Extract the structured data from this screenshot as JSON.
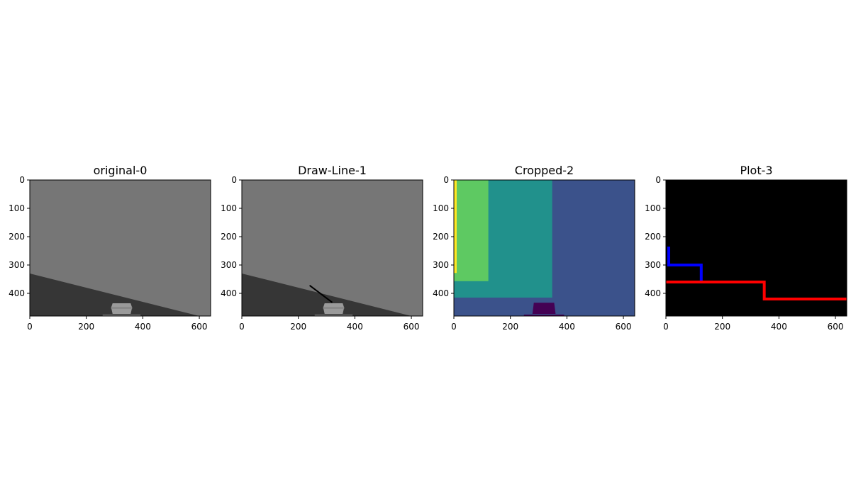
{
  "chart_data": [
    {
      "type": "image",
      "title": "original-0",
      "xlim": [
        0,
        640
      ],
      "ylim": [
        480,
        0
      ],
      "xticks": [
        0,
        200,
        400,
        600
      ],
      "yticks": [
        0,
        100,
        200,
        300,
        400
      ],
      "colors": {
        "background": "#767676",
        "road": "#363636",
        "vehicle": "#9a9a9a"
      },
      "road_edge": [
        [
          0,
          330
        ],
        [
          600,
          480
        ]
      ],
      "vehicle": [
        [
          288,
          435
        ],
        [
          362,
          480
        ]
      ]
    },
    {
      "type": "image",
      "title": "Draw-Line-1",
      "xlim": [
        0,
        640
      ],
      "ylim": [
        480,
        0
      ],
      "xticks": [
        0,
        200,
        400,
        600
      ],
      "yticks": [
        0,
        100,
        200,
        300,
        400
      ],
      "colors": {
        "background": "#767676",
        "road": "#363636",
        "vehicle": "#9a9a9a",
        "line": "#000000"
      },
      "road_edge": [
        [
          0,
          330
        ],
        [
          600,
          480
        ]
      ],
      "vehicle": [
        [
          288,
          435
        ],
        [
          362,
          480
        ]
      ],
      "drawn_line": [
        [
          240,
          372
        ],
        [
          320,
          432
        ]
      ]
    },
    {
      "type": "heatmap",
      "title": "Cropped-2",
      "xlim": [
        0,
        640
      ],
      "ylim": [
        480,
        0
      ],
      "xticks": [
        0,
        200,
        400,
        600
      ],
      "yticks": [
        0,
        100,
        200,
        300,
        400
      ],
      "regions": [
        {
          "x": [
            0,
            640
          ],
          "y": [
            0,
            480
          ],
          "color": "#3b528b"
        },
        {
          "x": [
            0,
            348
          ],
          "y": [
            0,
            415
          ],
          "color": "#21918c"
        },
        {
          "x": [
            0,
            122
          ],
          "y": [
            0,
            357
          ],
          "color": "#5ec962"
        },
        {
          "x": [
            0,
            10
          ],
          "y": [
            0,
            328
          ],
          "color": "#fde725"
        },
        {
          "x": [
            278,
            360
          ],
          "y": [
            433,
            480
          ],
          "color": "#440154"
        }
      ]
    },
    {
      "type": "line",
      "title": "Plot-3",
      "xlim": [
        0,
        640
      ],
      "ylim": [
        480,
        0
      ],
      "xticks": [
        0,
        200,
        400,
        600
      ],
      "yticks": [
        0,
        100,
        200,
        300,
        400
      ],
      "background": "#000000",
      "series": [
        {
          "color": "#0000ff",
          "x": [
            5,
            10,
            10,
            125,
            125
          ],
          "y": [
            240,
            240,
            300,
            300,
            357
          ]
        },
        {
          "color": "#ff0000",
          "x": [
            0,
            348,
            348,
            640
          ],
          "y": [
            360,
            360,
            420,
            420
          ]
        }
      ]
    }
  ]
}
